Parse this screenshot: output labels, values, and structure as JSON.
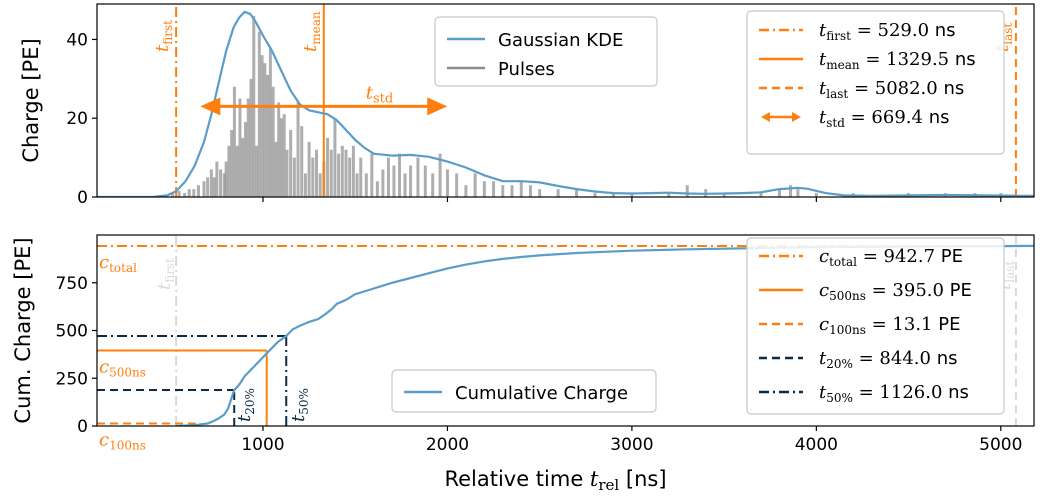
{
  "colors": {
    "kde": "#5b9dc9",
    "pulses": "#8c8c8c",
    "orange": "#ff7f0e",
    "navy": "#0d2b45",
    "faint": "#d9d9d9"
  },
  "chart_data": [
    {
      "type": "line+bar",
      "panel": "top",
      "ylabel": "Charge [PE]",
      "xlim": [
        100,
        5180
      ],
      "ylim": [
        0,
        49
      ],
      "x_ticks": [
        1000,
        2000,
        3000,
        4000,
        5000
      ],
      "y_ticks": [
        0,
        20,
        40
      ],
      "y_tick_labels": [
        "0",
        "20",
        "40"
      ],
      "series": [
        {
          "name": "Gaussian KDE",
          "style": "line",
          "color": "#5b9dc9",
          "points": [
            [
              100,
              0
            ],
            [
              400,
              0
            ],
            [
              480,
              0.4
            ],
            [
              530,
              1.5
            ],
            [
              580,
              4
            ],
            [
              630,
              8
            ],
            [
              680,
              14
            ],
            [
              720,
              21
            ],
            [
              760,
              29
            ],
            [
              800,
              37
            ],
            [
              840,
              43
            ],
            [
              870,
              45.5
            ],
            [
              900,
              47
            ],
            [
              930,
              46.5
            ],
            [
              960,
              44.5
            ],
            [
              1000,
              41
            ],
            [
              1050,
              37
            ],
            [
              1100,
              32
            ],
            [
              1150,
              27
            ],
            [
              1200,
              23.5
            ],
            [
              1250,
              22
            ],
            [
              1300,
              21.5
            ],
            [
              1350,
              21
            ],
            [
              1400,
              19.5
            ],
            [
              1450,
              17
            ],
            [
              1500,
              14.5
            ],
            [
              1550,
              12.5
            ],
            [
              1600,
              11
            ],
            [
              1700,
              10.5
            ],
            [
              1800,
              10.7
            ],
            [
              1900,
              10.2
            ],
            [
              2000,
              9
            ],
            [
              2100,
              7.5
            ],
            [
              2200,
              5.5
            ],
            [
              2300,
              4
            ],
            [
              2400,
              4
            ],
            [
              2500,
              3.7
            ],
            [
              2600,
              2.8
            ],
            [
              2700,
              2
            ],
            [
              2800,
              1.4
            ],
            [
              2900,
              1
            ],
            [
              3000,
              0.9
            ],
            [
              3100,
              1
            ],
            [
              3200,
              1.1
            ],
            [
              3300,
              0.9
            ],
            [
              3400,
              0.8
            ],
            [
              3500,
              0.9
            ],
            [
              3600,
              1
            ],
            [
              3700,
              1.2
            ],
            [
              3800,
              2
            ],
            [
              3900,
              2.3
            ],
            [
              3950,
              2.1
            ],
            [
              4050,
              1
            ],
            [
              4150,
              0.4
            ],
            [
              4300,
              0.3
            ],
            [
              4500,
              0.4
            ],
            [
              4700,
              0.5
            ],
            [
              4900,
              0.4
            ],
            [
              5100,
              0.3
            ],
            [
              5180,
              0.3
            ]
          ]
        },
        {
          "name": "Pulses",
          "style": "stem",
          "color": "#8c8c8c",
          "points": [
            [
              470,
              0.5
            ],
            [
              510,
              1
            ],
            [
              545,
              1.5
            ],
            [
              575,
              1
            ],
            [
              600,
              2
            ],
            [
              625,
              2
            ],
            [
              650,
              3
            ],
            [
              680,
              4
            ],
            [
              700,
              5
            ],
            [
              720,
              7
            ],
            [
              735,
              5
            ],
            [
              750,
              9
            ],
            [
              770,
              7
            ],
            [
              790,
              6
            ],
            [
              800,
              9
            ],
            [
              815,
              13
            ],
            [
              830,
              17
            ],
            [
              845,
              28
            ],
            [
              860,
              13
            ],
            [
              875,
              25
            ],
            [
              890,
              15
            ],
            [
              905,
              19
            ],
            [
              920,
              25
            ],
            [
              935,
              30
            ],
            [
              950,
              46
            ],
            [
              965,
              13
            ],
            [
              980,
              42
            ],
            [
              995,
              36
            ],
            [
              1010,
              34
            ],
            [
              1025,
              31
            ],
            [
              1040,
              38
            ],
            [
              1055,
              28
            ],
            [
              1070,
              14
            ],
            [
              1085,
              24
            ],
            [
              1100,
              20
            ],
            [
              1115,
              21
            ],
            [
              1130,
              12
            ],
            [
              1150,
              17
            ],
            [
              1170,
              10
            ],
            [
              1190,
              24
            ],
            [
              1210,
              18
            ],
            [
              1230,
              6
            ],
            [
              1250,
              14
            ],
            [
              1270,
              10
            ],
            [
              1290,
              12
            ],
            [
              1310,
              6
            ],
            [
              1330,
              9
            ],
            [
              1350,
              15
            ],
            [
              1370,
              12
            ],
            [
              1390,
              20
            ],
            [
              1410,
              11
            ],
            [
              1430,
              13
            ],
            [
              1450,
              12
            ],
            [
              1470,
              10
            ],
            [
              1490,
              13
            ],
            [
              1510,
              6
            ],
            [
              1530,
              10
            ],
            [
              1560,
              6
            ],
            [
              1590,
              11
            ],
            [
              1620,
              4
            ],
            [
              1650,
              7
            ],
            [
              1680,
              10
            ],
            [
              1710,
              8
            ],
            [
              1740,
              11
            ],
            [
              1770,
              6
            ],
            [
              1800,
              8
            ],
            [
              1840,
              10
            ],
            [
              1880,
              8
            ],
            [
              1920,
              6
            ],
            [
              1960,
              11
            ],
            [
              2000,
              7
            ],
            [
              2050,
              6
            ],
            [
              2100,
              3
            ],
            [
              2150,
              6
            ],
            [
              2200,
              4
            ],
            [
              2250,
              4
            ],
            [
              2300,
              3
            ],
            [
              2350,
              3
            ],
            [
              2400,
              4
            ],
            [
              2450,
              3
            ],
            [
              2500,
              2
            ],
            [
              2600,
              2
            ],
            [
              2700,
              2
            ],
            [
              2800,
              1
            ],
            [
              2900,
              1
            ],
            [
              3000,
              1
            ],
            [
              3200,
              1
            ],
            [
              3300,
              3
            ],
            [
              3400,
              2
            ],
            [
              3500,
              1
            ],
            [
              3700,
              1
            ],
            [
              3800,
              2
            ],
            [
              3860,
              3
            ],
            [
              3900,
              2
            ],
            [
              4000,
              1
            ],
            [
              4200,
              1
            ],
            [
              4500,
              1
            ],
            [
              4700,
              1
            ],
            [
              4860,
              1
            ],
            [
              5000,
              1
            ]
          ]
        }
      ],
      "vlines": [
        {
          "x": 529.0,
          "style": "dashdot",
          "color": "#ff7f0e",
          "label": "t",
          "sub": "first"
        },
        {
          "x": 1329.5,
          "style": "solid",
          "color": "#ff7f0e",
          "label": "t",
          "sub": "mean"
        },
        {
          "x": 5082.0,
          "style": "dashed",
          "color": "#ff7f0e",
          "label": "t",
          "sub": "last"
        }
      ],
      "std_arrow": {
        "x_from": 660.1,
        "x_to": 1998.9,
        "y": 23,
        "label": "t",
        "sub": "std"
      },
      "legend_main": [
        {
          "name": "Gaussian KDE",
          "color": "#5b9dc9"
        },
        {
          "name": "Pulses",
          "color": "#8c8c8c"
        }
      ],
      "legend_stats": [
        {
          "pre": "t",
          "sub": "first",
          "value": " = 529.0",
          "unit": " ns",
          "style": "dashdot"
        },
        {
          "pre": "t",
          "sub": "mean",
          "value": " = 1329.5",
          "unit": " ns",
          "style": "solid"
        },
        {
          "pre": "t",
          "sub": "last",
          "value": " = 5082.0",
          "unit": " ns",
          "style": "dashed"
        },
        {
          "pre": "t",
          "sub": "std",
          "value": " = 669.4",
          "unit": " ns",
          "style": "arrow"
        }
      ]
    },
    {
      "type": "line",
      "panel": "bottom",
      "ylabel": "Cum. Charge [PE]",
      "xlabel_text": "Relative time ",
      "xlabel_var": "t",
      "xlabel_sub": "rel",
      "xlabel_unit": " [ns]",
      "xlim": [
        100,
        5180
      ],
      "ylim": [
        0,
        1000
      ],
      "x_ticks": [
        1000,
        2000,
        3000,
        4000,
        5000
      ],
      "x_tick_labels": [
        "1000",
        "2000",
        "3000",
        "4000",
        "5000"
      ],
      "y_ticks": [
        0,
        250,
        500,
        750
      ],
      "y_tick_labels": [
        "0",
        "250",
        "500",
        "750"
      ],
      "series": [
        {
          "name": "Cumulative Charge",
          "color": "#5b9dc9",
          "points": [
            [
              529,
              0
            ],
            [
              560,
              1
            ],
            [
              600,
              3
            ],
            [
              650,
              7
            ],
            [
              700,
              13
            ],
            [
              730,
              25
            ],
            [
              760,
              40
            ],
            [
              790,
              60
            ],
            [
              810,
              90
            ],
            [
              844,
              188
            ],
            [
              870,
              215
            ],
            [
              900,
              260
            ],
            [
              940,
              300
            ],
            [
              980,
              340
            ],
            [
              1020,
              380
            ],
            [
              1050,
              410
            ],
            [
              1080,
              440
            ],
            [
              1126,
              471
            ],
            [
              1160,
              505
            ],
            [
              1200,
              525
            ],
            [
              1250,
              545
            ],
            [
              1300,
              560
            ],
            [
              1330,
              580
            ],
            [
              1370,
              610
            ],
            [
              1400,
              640
            ],
            [
              1450,
              660
            ],
            [
              1500,
              690
            ],
            [
              1600,
              720
            ],
            [
              1700,
              750
            ],
            [
              1800,
              775
            ],
            [
              1900,
              800
            ],
            [
              2000,
              825
            ],
            [
              2100,
              845
            ],
            [
              2200,
              862
            ],
            [
              2300,
              875
            ],
            [
              2400,
              885
            ],
            [
              2500,
              893
            ],
            [
              2700,
              906
            ],
            [
              3000,
              918
            ],
            [
              3300,
              925
            ],
            [
              3600,
              930
            ],
            [
              4000,
              936
            ],
            [
              4500,
              940
            ],
            [
              5000,
              942
            ],
            [
              5180,
              942.7
            ]
          ]
        }
      ],
      "hlines": [
        {
          "y": 942.7,
          "style": "dashdot",
          "color": "#ff7f0e",
          "label": "c",
          "sub": "total"
        },
        {
          "y": 395.0,
          "x_to": 1020,
          "style": "solid",
          "color": "#ff7f0e",
          "label": "c",
          "sub": "500ns"
        },
        {
          "y": 13.1,
          "x_to": 635,
          "style": "dashed",
          "color": "#ff7f0e",
          "label": "c",
          "sub": "100ns"
        },
        {
          "y": 188.5,
          "x_to": 844,
          "style": "dashed",
          "color": "#0d2b45"
        },
        {
          "y": 471.4,
          "x_to": 1126,
          "style": "dashdot",
          "color": "#0d2b45"
        }
      ],
      "vlines": [
        {
          "x": 529.0,
          "style": "dashdot",
          "color": "#d9d9d9",
          "label": "t",
          "sub": "first"
        },
        {
          "x": 5082.0,
          "style": "dashed",
          "color": "#d9d9d9",
          "label": "t",
          "sub": "last"
        },
        {
          "x": 1020,
          "y_to": 395.0,
          "style": "solid",
          "color": "#ff7f0e"
        },
        {
          "x": 844.0,
          "y_to": 188.5,
          "style": "dashed",
          "color": "#0d2b45",
          "label": "t",
          "sub": "20%"
        },
        {
          "x": 1126.0,
          "y_to": 471.4,
          "style": "dashdot",
          "color": "#0d2b45",
          "label": "t",
          "sub": "50%"
        }
      ],
      "legend_main": [
        {
          "name": "Cumulative Charge",
          "color": "#5b9dc9"
        }
      ],
      "legend_stats": [
        {
          "pre": "c",
          "sub": "total",
          "value": " = 942.7",
          "unit": " PE",
          "style": "dashdot",
          "color": "#ff7f0e"
        },
        {
          "pre": "c",
          "sub": "500ns",
          "value": " = 395.0",
          "unit": " PE",
          "style": "solid",
          "color": "#ff7f0e"
        },
        {
          "pre": "c",
          "sub": "100ns",
          "value": " = 13.1",
          "unit": " PE",
          "style": "dashed",
          "color": "#ff7f0e"
        },
        {
          "pre": "t",
          "sub": "20%",
          "value": " = 844.0",
          "unit": " ns",
          "style": "dashed",
          "color": "#0d2b45"
        },
        {
          "pre": "t",
          "sub": "50%",
          "value": " = 1126.0",
          "unit": " ns",
          "style": "dashdot",
          "color": "#0d2b45"
        }
      ]
    }
  ]
}
